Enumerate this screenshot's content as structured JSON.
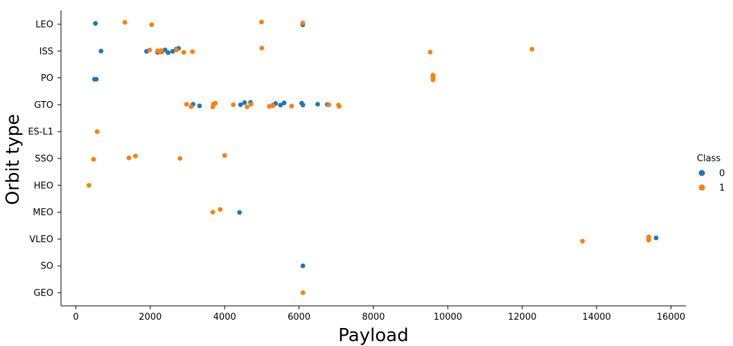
{
  "chart_data": {
    "type": "scatter",
    "title": "",
    "xlabel": "Payload",
    "ylabel": "Orbit type",
    "xlim": [
      -400,
      16400
    ],
    "xticks": [
      0,
      2000,
      4000,
      6000,
      8000,
      10000,
      12000,
      14000,
      16000
    ],
    "categories": [
      "LEO",
      "ISS",
      "PO",
      "GTO",
      "ES-L1",
      "SSO",
      "HEO",
      "MEO",
      "VLEO",
      "SO",
      "GEO"
    ],
    "grid": false,
    "legend": {
      "title": "Class",
      "placement": "center-right",
      "entries": [
        "0",
        "1"
      ]
    },
    "series": [
      {
        "name": "0",
        "color": "#1f77b4",
        "points": [
          {
            "x": 525,
            "y": "LEO",
            "jitter": -0.03
          },
          {
            "x": 6100,
            "y": "LEO",
            "jitter": 0.02
          },
          {
            "x": 677,
            "y": "ISS",
            "jitter": 0.0
          },
          {
            "x": 1900,
            "y": "ISS",
            "jitter": 0.01
          },
          {
            "x": 2200,
            "y": "ISS",
            "jitter": 0.05
          },
          {
            "x": 2300,
            "y": "ISS",
            "jitter": 0.03
          },
          {
            "x": 2400,
            "y": "ISS",
            "jitter": -0.04
          },
          {
            "x": 2480,
            "y": "ISS",
            "jitter": 0.06
          },
          {
            "x": 2600,
            "y": "ISS",
            "jitter": 0.01
          },
          {
            "x": 2700,
            "y": "ISS",
            "jitter": -0.07
          },
          {
            "x": 2760,
            "y": "ISS",
            "jitter": -0.1
          },
          {
            "x": 500,
            "y": "PO",
            "jitter": 0.05
          },
          {
            "x": 550,
            "y": "PO",
            "jitter": 0.05
          },
          {
            "x": 3150,
            "y": "GTO",
            "jitter": -0.02
          },
          {
            "x": 3325,
            "y": "GTO",
            "jitter": 0.04
          },
          {
            "x": 4428,
            "y": "GTO",
            "jitter": 0.0
          },
          {
            "x": 4535,
            "y": "GTO",
            "jitter": -0.08
          },
          {
            "x": 4696,
            "y": "GTO",
            "jitter": -0.09
          },
          {
            "x": 5300,
            "y": "GTO",
            "jitter": 0.01
          },
          {
            "x": 5370,
            "y": "GTO",
            "jitter": -0.05
          },
          {
            "x": 5500,
            "y": "GTO",
            "jitter": 0.01
          },
          {
            "x": 5600,
            "y": "GTO",
            "jitter": -0.07
          },
          {
            "x": 6070,
            "y": "GTO",
            "jitter": -0.06
          },
          {
            "x": 6104,
            "y": "GTO",
            "jitter": 0.01
          },
          {
            "x": 6500,
            "y": "GTO",
            "jitter": -0.02
          },
          {
            "x": 6761,
            "y": "GTO",
            "jitter": -0.01
          },
          {
            "x": 4400,
            "y": "MEO",
            "jitter": 0.01
          },
          {
            "x": 15600,
            "y": "VLEO",
            "jitter": -0.04
          },
          {
            "x": 6104,
            "y": "SO",
            "jitter": 0.0
          }
        ]
      },
      {
        "name": "1",
        "color": "#ff7f0e",
        "points": [
          {
            "x": 1316,
            "y": "LEO",
            "jitter": -0.07
          },
          {
            "x": 2034,
            "y": "LEO",
            "jitter": 0.02
          },
          {
            "x": 4990,
            "y": "LEO",
            "jitter": -0.08
          },
          {
            "x": 6100,
            "y": "LEO",
            "jitter": -0.05
          },
          {
            "x": 1980,
            "y": "ISS",
            "jitter": -0.04
          },
          {
            "x": 2200,
            "y": "ISS",
            "jitter": -0.01
          },
          {
            "x": 2258,
            "y": "ISS",
            "jitter": 0.03
          },
          {
            "x": 2300,
            "y": "ISS",
            "jitter": -0.02
          },
          {
            "x": 2705,
            "y": "ISS",
            "jitter": -0.04
          },
          {
            "x": 2900,
            "y": "ISS",
            "jitter": 0.05
          },
          {
            "x": 3136,
            "y": "ISS",
            "jitter": 0.02
          },
          {
            "x": 5000,
            "y": "ISS",
            "jitter": -0.11
          },
          {
            "x": 9525,
            "y": "ISS",
            "jitter": 0.04
          },
          {
            "x": 12259,
            "y": "ISS",
            "jitter": -0.07
          },
          {
            "x": 9600,
            "y": "PO",
            "jitter": -0.1
          },
          {
            "x": 9600,
            "y": "PO",
            "jitter": -0.05
          },
          {
            "x": 9600,
            "y": "PO",
            "jitter": 0.02
          },
          {
            "x": 9600,
            "y": "PO",
            "jitter": 0.07
          },
          {
            "x": 2976,
            "y": "GTO",
            "jitter": -0.02
          },
          {
            "x": 3100,
            "y": "GTO",
            "jitter": 0.07
          },
          {
            "x": 3681,
            "y": "GTO",
            "jitter": 0.08
          },
          {
            "x": 3700,
            "y": "GTO",
            "jitter": -0.03
          },
          {
            "x": 3750,
            "y": "GTO",
            "jitter": -0.06
          },
          {
            "x": 4230,
            "y": "GTO",
            "jitter": 0.0
          },
          {
            "x": 4600,
            "y": "GTO",
            "jitter": 0.08
          },
          {
            "x": 4707,
            "y": "GTO",
            "jitter": -0.02
          },
          {
            "x": 5200,
            "y": "GTO",
            "jitter": 0.06
          },
          {
            "x": 5300,
            "y": "GTO",
            "jitter": 0.03
          },
          {
            "x": 5800,
            "y": "GTO",
            "jitter": 0.05
          },
          {
            "x": 6800,
            "y": "GTO",
            "jitter": 0.0
          },
          {
            "x": 7060,
            "y": "GTO",
            "jitter": 0.01
          },
          {
            "x": 7076,
            "y": "GTO",
            "jitter": 0.06
          },
          {
            "x": 570,
            "y": "ES-L1",
            "jitter": 0.0
          },
          {
            "x": 475,
            "y": "SSO",
            "jitter": 0.03
          },
          {
            "x": 1425,
            "y": "SSO",
            "jitter": -0.02
          },
          {
            "x": 1600,
            "y": "SSO",
            "jitter": -0.09
          },
          {
            "x": 2800,
            "y": "SSO",
            "jitter": 0.0
          },
          {
            "x": 4000,
            "y": "SSO",
            "jitter": -0.11
          },
          {
            "x": 350,
            "y": "HEO",
            "jitter": 0.0
          },
          {
            "x": 3681,
            "y": "MEO",
            "jitter": 0.0
          },
          {
            "x": 3880,
            "y": "MEO",
            "jitter": -0.1
          },
          {
            "x": 13620,
            "y": "VLEO",
            "jitter": 0.08
          },
          {
            "x": 15400,
            "y": "VLEO",
            "jitter": -0.08
          },
          {
            "x": 15400,
            "y": "VLEO",
            "jitter": -0.04
          },
          {
            "x": 15400,
            "y": "VLEO",
            "jitter": 0.0
          },
          {
            "x": 15400,
            "y": "VLEO",
            "jitter": 0.04
          },
          {
            "x": 6104,
            "y": "GEO",
            "jitter": 0.0
          }
        ]
      }
    ]
  }
}
